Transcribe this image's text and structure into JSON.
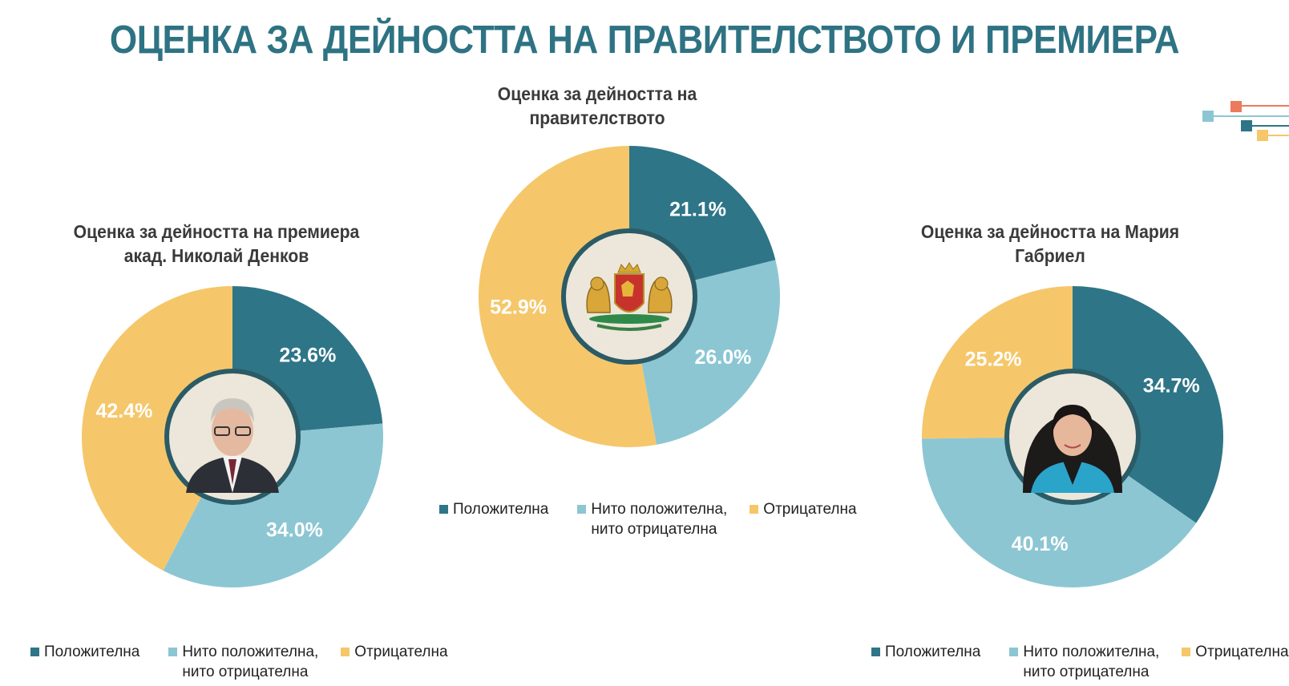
{
  "header": {
    "title": "ОЦЕНКА ЗА ДЕЙНОСТТА НА ПРАВИТЕЛСТВОТО И ПРЕМИЕРА"
  },
  "colors": {
    "positive": "#2e7587",
    "neutral": "#8cc6d3",
    "negative": "#f5c76a",
    "title": "#2e7383",
    "ring": "#2b5b66",
    "center_bg": "#ece7da"
  },
  "legend_labels": {
    "positive": "Положителна",
    "neutral": "Нито положителна,\nнито отрицателна",
    "negative": "Отрицателна"
  },
  "center_images": {
    "government": "bulgarian-coat-of-arms",
    "premier": "portrait-nikolay-denkov",
    "gabriel": "portrait-mariya-gabriel"
  },
  "chart_data": [
    {
      "type": "pie",
      "id": "premier",
      "title": "Оценка за дейността на премиера\nакад. Николай Денков",
      "categories": [
        "Положителна",
        "Нито положителна, нито отрицателна",
        "Отрицателна"
      ],
      "values": [
        23.6,
        34.0,
        42.4
      ],
      "value_labels": [
        "23.6%",
        "34.0%",
        "42.4%"
      ],
      "legend_position": "bottom"
    },
    {
      "type": "pie",
      "id": "government",
      "title": "Оценка за дейността на правителството",
      "categories": [
        "Положителна",
        "Нито положителна, нито отрицателна",
        "Отрицателна"
      ],
      "values": [
        21.1,
        26.0,
        52.9
      ],
      "value_labels": [
        "21.1%",
        "26.0%",
        "52.9%"
      ],
      "legend_position": "bottom"
    },
    {
      "type": "pie",
      "id": "gabriel",
      "title": "Оценка за дейността на Мария Габриел",
      "categories": [
        "Положителна",
        "Нито положителна, нито отрицателна",
        "Отрицателна"
      ],
      "values": [
        34.7,
        40.1,
        25.2
      ],
      "value_labels": [
        "34.7%",
        "40.1%",
        "25.2%"
      ],
      "legend_position": "bottom"
    }
  ]
}
